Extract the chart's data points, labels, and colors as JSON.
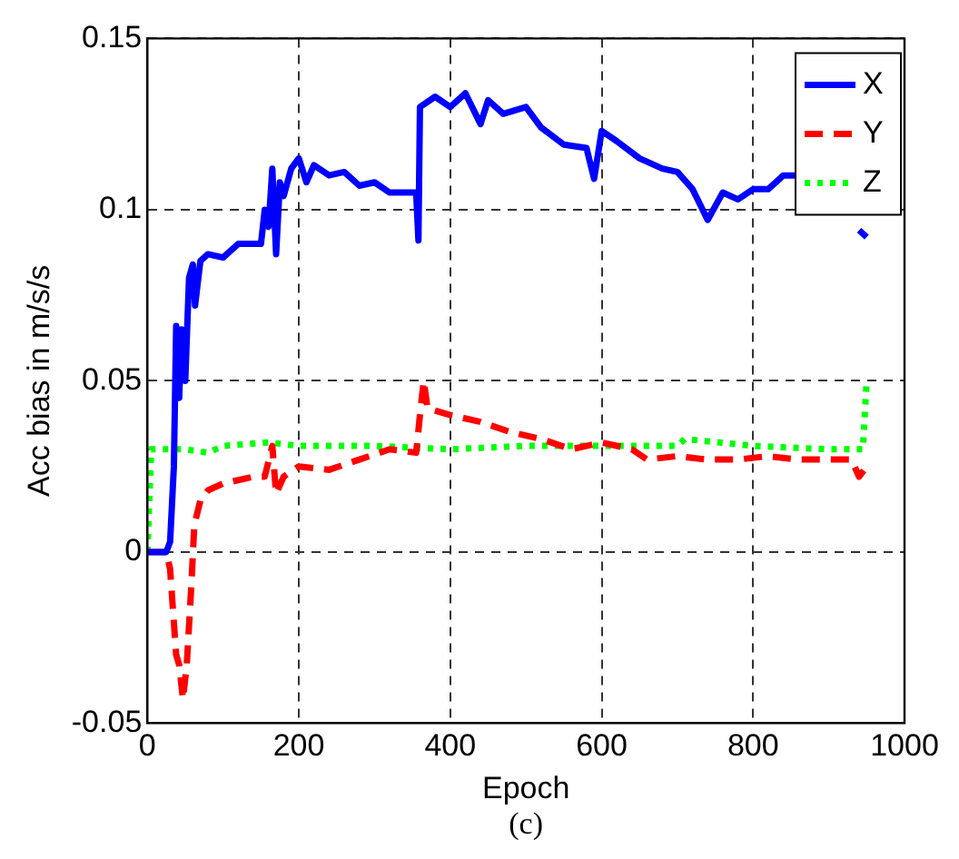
{
  "chart_data": {
    "type": "line",
    "xlabel": "Epoch",
    "ylabel": "Acc bias in m/s/s",
    "annotations": [
      "(c)"
    ],
    "xlim": [
      0,
      1000
    ],
    "xticks": [
      0,
      200,
      400,
      600,
      800,
      1000
    ],
    "ylim": [
      -0.05,
      0.15
    ],
    "yticks": [
      -0.05,
      0,
      0.05,
      0.1,
      0.15
    ],
    "grid": true,
    "legend": "top right",
    "marker": "none",
    "series": [
      {
        "name": "X",
        "color": "#0000ff",
        "line_style": "solid",
        "x": [
          0,
          25,
          30,
          35,
          38,
          42,
          45,
          50,
          55,
          60,
          63,
          70,
          80,
          100,
          120,
          150,
          155,
          160,
          165,
          170,
          175,
          180,
          190,
          200,
          210,
          220,
          240,
          260,
          280,
          300,
          320,
          355,
          358,
          360,
          380,
          400,
          420,
          440,
          450,
          470,
          500,
          520,
          550,
          580,
          590,
          600,
          620,
          650,
          680,
          700,
          720,
          740,
          760,
          780,
          800,
          820,
          840,
          860,
          900,
          930,
          940,
          950
        ],
        "values": [
          0,
          0,
          0.003,
          0.025,
          0.066,
          0.045,
          0.065,
          0.05,
          0.08,
          0.084,
          0.072,
          0.085,
          0.087,
          0.086,
          0.09,
          0.09,
          0.1,
          0.095,
          0.112,
          0.087,
          0.108,
          0.104,
          0.112,
          0.115,
          0.108,
          0.113,
          0.11,
          0.111,
          0.107,
          0.108,
          0.105,
          0.105,
          0.091,
          0.13,
          0.133,
          0.13,
          0.134,
          0.125,
          0.132,
          0.128,
          0.13,
          0.124,
          0.119,
          0.118,
          0.109,
          0.123,
          0.12,
          0.115,
          0.112,
          0.111,
          0.106,
          0.097,
          0.105,
          0.103,
          0.106,
          0.106,
          0.11,
          0.11,
          null,
          null,
          0.094,
          0.092
        ]
      },
      {
        "name": "Y",
        "color": "#ff0000",
        "line_style": "dashed",
        "x": [
          0,
          25,
          30,
          38,
          42,
          47,
          52,
          58,
          62,
          70,
          80,
          100,
          140,
          155,
          165,
          170,
          180,
          200,
          240,
          280,
          320,
          355,
          360,
          365,
          370,
          400,
          440,
          480,
          520,
          560,
          600,
          640,
          660,
          700,
          740,
          780,
          820,
          860,
          930,
          940,
          950
        ],
        "values": [
          0,
          0,
          -0.005,
          -0.03,
          -0.033,
          -0.043,
          -0.033,
          -0.01,
          0.008,
          0.015,
          0.018,
          0.02,
          0.022,
          0.022,
          0.031,
          0.017,
          0.022,
          0.025,
          0.024,
          0.027,
          0.03,
          0.029,
          0.04,
          0.05,
          0.042,
          0.04,
          0.038,
          0.035,
          0.033,
          0.03,
          0.032,
          0.03,
          0.027,
          0.028,
          0.027,
          0.027,
          0.028,
          0.027,
          0.027,
          0.022,
          0.025
        ]
      },
      {
        "name": "Z",
        "color": "#00ff00",
        "line_style": "dotted",
        "x": [
          0,
          5,
          50,
          80,
          100,
          160,
          200,
          300,
          400,
          500,
          600,
          700,
          710,
          800,
          900,
          945,
          950
        ],
        "values": [
          0,
          0.03,
          0.03,
          0.029,
          0.031,
          0.032,
          0.031,
          0.031,
          0.03,
          0.031,
          0.031,
          0.031,
          0.033,
          0.031,
          0.03,
          0.03,
          0.05
        ]
      }
    ]
  }
}
